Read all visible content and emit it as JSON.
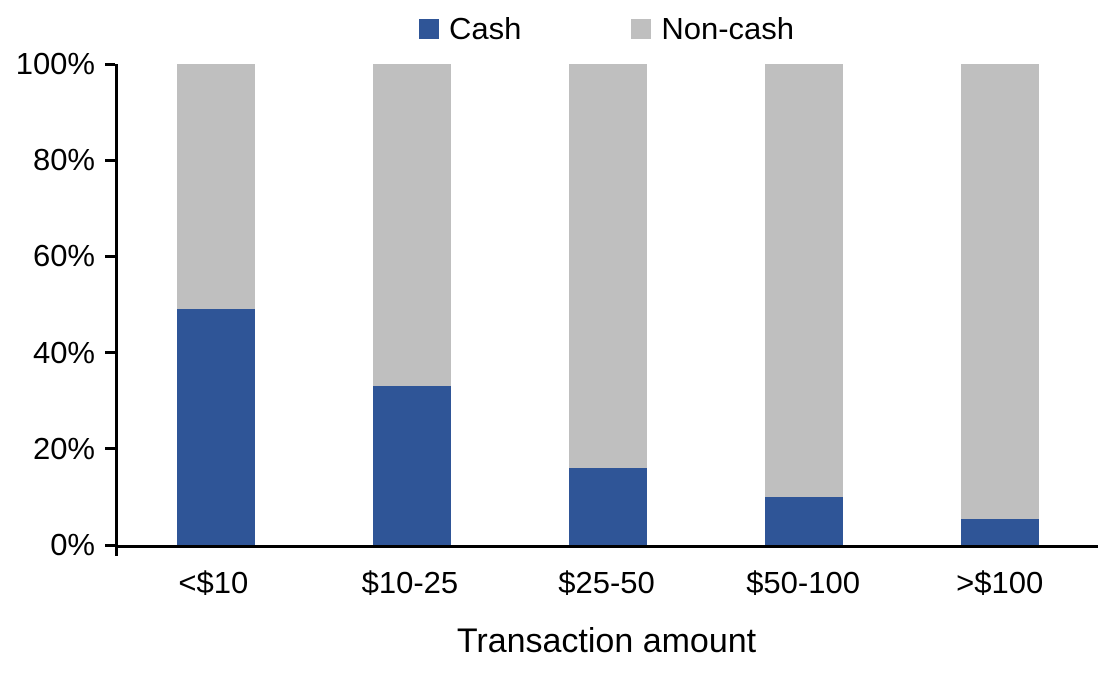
{
  "chart_data": {
    "type": "bar",
    "stacked": true,
    "percent_stacked": true,
    "title": "",
    "xlabel": "Transaction amount",
    "ylabel": "",
    "categories": [
      "<$10",
      "$10-25",
      "$25-50",
      "$50-100",
      ">$100"
    ],
    "series": [
      {
        "name": "Cash",
        "color": "#2F5597",
        "values": [
          49,
          33,
          16,
          10,
          5.5
        ]
      },
      {
        "name": "Non-cash",
        "color": "#BFBFBF",
        "values": [
          51,
          67,
          84,
          90,
          94.5
        ]
      }
    ],
    "ylim": [
      0,
      100
    ],
    "yticks": [
      {
        "value": 0,
        "label": "0%"
      },
      {
        "value": 20,
        "label": "20%"
      },
      {
        "value": 40,
        "label": "40%"
      },
      {
        "value": 60,
        "label": "60%"
      },
      {
        "value": 80,
        "label": "80%"
      },
      {
        "value": 100,
        "label": "100%"
      }
    ],
    "grid": false,
    "legend_position": "top",
    "axis_color": "#000000",
    "background_color": "#FFFFFF"
  }
}
